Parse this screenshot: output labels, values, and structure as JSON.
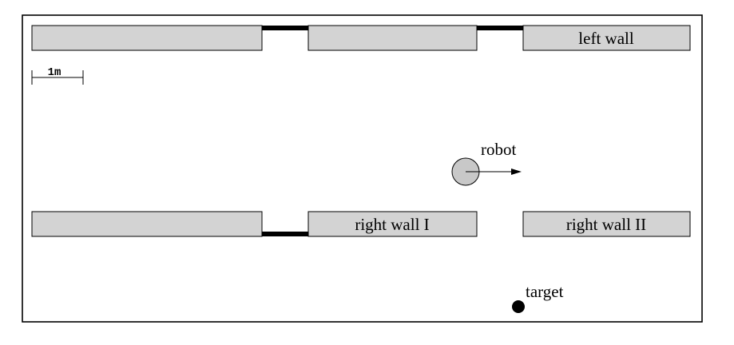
{
  "colors": {
    "wall_fill": "#d3d3d3",
    "outline": "#000000",
    "door": "#000000",
    "robot_fill": "#c8c8c8",
    "target": "#000000",
    "background": "#ffffff"
  },
  "scale_bar": {
    "label": "1m"
  },
  "walls": {
    "left_wall": {
      "label": "left wall"
    },
    "right_wall_1": {
      "label": "right wall I"
    },
    "right_wall_2": {
      "label": "right wall II"
    }
  },
  "robot": {
    "label": "robot"
  },
  "target": {
    "label": "target"
  }
}
